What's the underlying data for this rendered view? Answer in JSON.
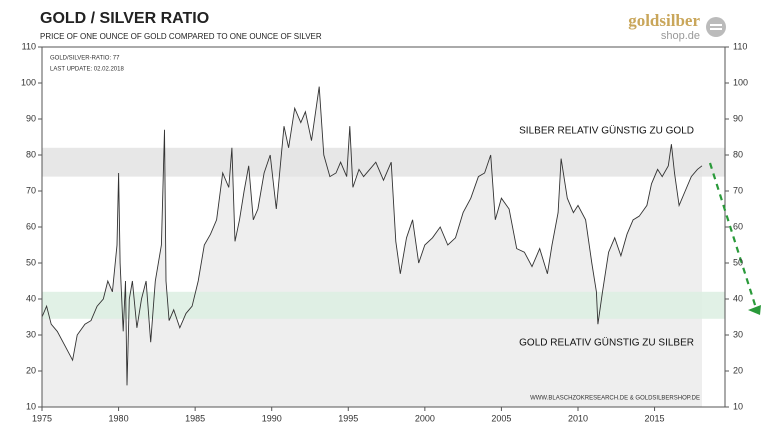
{
  "chart_data": {
    "type": "line",
    "title": "GOLD / SILVER  RATIO",
    "subtitle": "PRICE OF ONE OUNCE OF GOLD COMPARED TO ONE OUNCE OF SILVER",
    "logo": {
      "main": "goldsilber",
      "sub": "shop.de"
    },
    "info": [
      "GOLD/SILVER-RATIO: 77",
      "LAST UPDATE: 02.02.2018"
    ],
    "annotations": [
      "SILBER RELATIV GÜNSTIG ZU GOLD",
      "GOLD RELATIV GÜNSTIG ZU SILBER"
    ],
    "source": "WWW.BLASCHZOKRESEARCH.DE  &  GOLDSILBERSHOP.DE",
    "color": "#333333",
    "area_color": "#eeeeee",
    "bands": [
      {
        "range": [
          74,
          82
        ],
        "color": "#e3e3e3"
      },
      {
        "range": [
          34.5,
          42
        ],
        "color": "#dcefe2"
      }
    ],
    "x": [
      1975,
      1975.3,
      1975.6,
      1976,
      1976.5,
      1977,
      1977.3,
      1977.8,
      1978.2,
      1978.6,
      1979,
      1979.3,
      1979.6,
      1979.9,
      1980,
      1980.1,
      1980.3,
      1980.45,
      1980.55,
      1980.7,
      1980.9,
      1981.2,
      1981.5,
      1981.8,
      1982.1,
      1982.4,
      1982.8,
      1983,
      1983.1,
      1983.3,
      1983.6,
      1984,
      1984.4,
      1984.8,
      1985.2,
      1985.6,
      1986,
      1986.4,
      1986.8,
      1987.2,
      1987.4,
      1987.6,
      1987.9,
      1988.2,
      1988.5,
      1988.8,
      1989.1,
      1989.5,
      1989.9,
      1990.3,
      1990.8,
      1991.1,
      1991.5,
      1991.9,
      1992.2,
      1992.6,
      1993.1,
      1993.4,
      1993.8,
      1994.2,
      1994.5,
      1994.9,
      1995.1,
      1995.3,
      1995.7,
      1996,
      1996.4,
      1996.8,
      1997.3,
      1997.8,
      1998.1,
      1998.4,
      1998.8,
      1999.2,
      1999.6,
      2000,
      2000.5,
      2001,
      2001.5,
      2002,
      2002.5,
      2003,
      2003.5,
      2003.9,
      2004.3,
      2004.6,
      2005,
      2005.5,
      2006,
      2006.5,
      2007,
      2007.5,
      2008,
      2008.3,
      2008.7,
      2008.9,
      2009.3,
      2009.7,
      2010,
      2010.5,
      2010.9,
      2011.2,
      2011.3,
      2011.6,
      2012,
      2012.4,
      2012.8,
      2013.2,
      2013.6,
      2014,
      2014.5,
      2014.8,
      2015.2,
      2015.5,
      2015.9,
      2016.1,
      2016.3,
      2016.6,
      2017,
      2017.4,
      2017.8,
      2018.1
    ],
    "values": [
      35,
      38,
      33,
      31,
      27,
      23,
      30,
      33,
      34,
      38,
      40,
      45,
      42,
      55,
      75,
      50,
      31,
      45,
      16,
      40,
      45,
      32,
      40,
      45,
      28,
      45,
      55,
      87,
      45,
      34,
      37,
      32,
      36,
      38,
      45,
      55,
      58,
      62,
      75,
      71,
      82,
      56,
      62,
      70,
      77,
      62,
      65,
      75,
      80,
      65,
      88,
      82,
      93,
      89,
      92,
      84,
      99,
      80,
      74,
      75,
      78,
      74,
      88,
      71,
      76,
      74,
      76,
      78,
      73,
      78,
      56,
      47,
      57,
      62,
      50,
      55,
      57,
      60,
      55,
      57,
      64,
      68,
      74,
      75,
      80,
      62,
      68,
      65,
      54,
      53,
      49,
      54,
      47,
      55,
      64,
      79,
      68,
      64,
      66,
      62,
      50,
      42,
      33,
      42,
      53,
      57,
      52,
      58,
      62,
      63,
      66,
      72,
      76,
      74,
      77,
      83,
      75,
      66,
      70,
      74,
      76,
      77
    ],
    "xlim": [
      1975,
      2019.6
    ],
    "xticks": [
      1975,
      1980,
      1985,
      1990,
      1995,
      2000,
      2005,
      2010,
      2015
    ],
    "ylim": [
      10,
      110
    ],
    "yticks": [
      10,
      20,
      30,
      40,
      50,
      60,
      70,
      80,
      90,
      100,
      110
    ],
    "y2lim": [
      10,
      110
    ],
    "y2ticks": [
      10,
      20,
      30,
      40,
      50,
      60,
      70,
      80,
      90,
      100,
      110
    ]
  }
}
